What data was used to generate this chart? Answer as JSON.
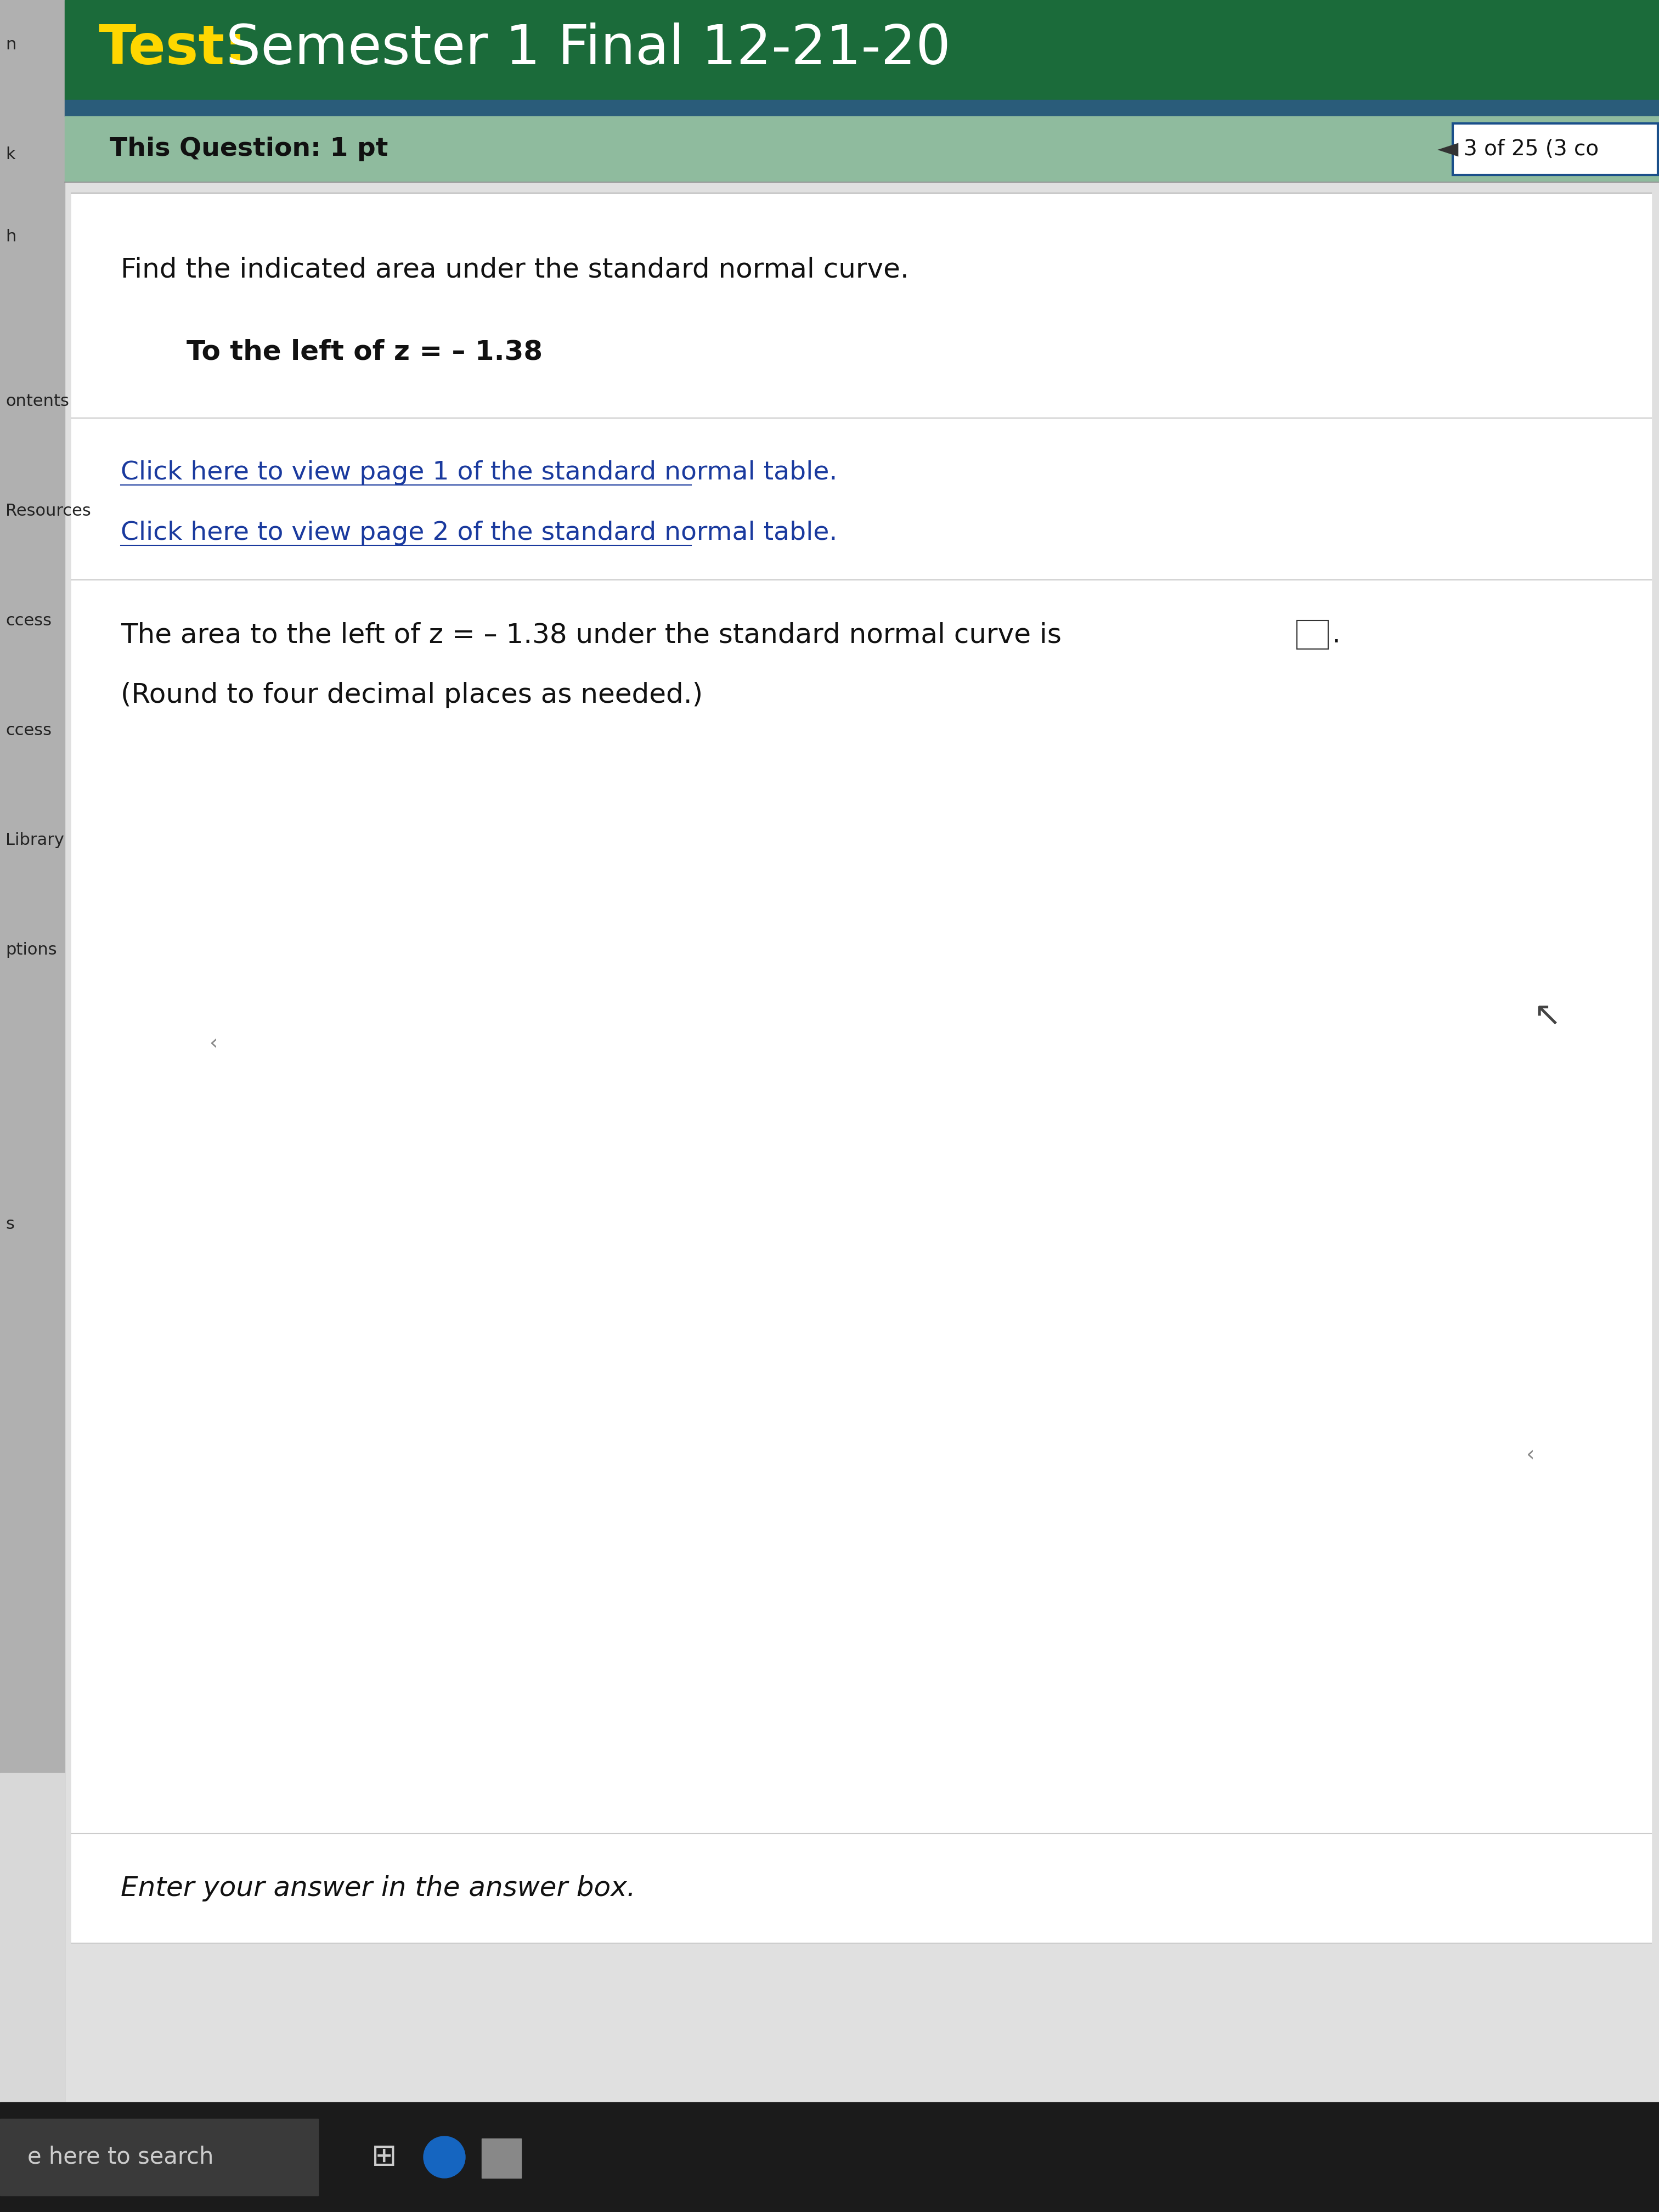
{
  "title_prefix": "Test:",
  "title_main": " Semester 1 Final 12-21-20",
  "title_prefix_color": "#FFD700",
  "title_main_color": "#FFFFFF",
  "title_bg_color": "#1B6B3A",
  "header_bg_color": "#8FBB9E",
  "question_label": "This Question: 1 pt",
  "nav_text": "3 of 25 (3 co",
  "left_sidebar_color": "#C8C8C8",
  "left_sidebar_items": [
    "n",
    "k",
    "h",
    "ontents",
    "Resources",
    "ccess",
    "ccess",
    "Library",
    "ptions",
    "s"
  ],
  "left_sidebar_y": [
    3950,
    3750,
    3600,
    3300,
    3100,
    2900,
    2700,
    2500,
    2300,
    1800
  ],
  "main_bg_color": "#E0E0E0",
  "content_bg_color": "#FFFFFF",
  "line1": "Find the indicated area under the standard normal curve.",
  "line2_indent": "To the left of z = – 1.38",
  "link1": "Click here to view page 1 of the standard normal table.",
  "link2": "Click here to view page 2 of the standard normal table.",
  "link_color": "#1A3A9E",
  "answer_line": "The area to the left of z = – 1.38 under the standard normal curve is",
  "answer_line2": "(Round to four decimal places as needed.)",
  "bottom_text": "Enter your answer in the answer box.",
  "taskbar_color": "#1B1B1B",
  "search_text": "e here to search"
}
